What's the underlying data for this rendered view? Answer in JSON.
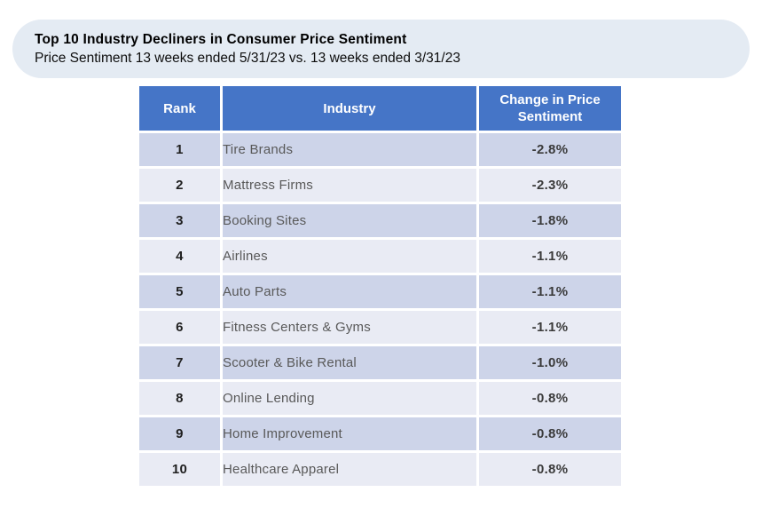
{
  "banner": {
    "title": "Top 10 Industry Decliners in Consumer Price Sentiment",
    "subtitle": "Price Sentiment 13 weeks ended 5/31/23 vs. 13 weeks ended 3/31/23"
  },
  "table": {
    "columns": [
      "Rank",
      "Industry",
      "Change in Price Sentiment"
    ],
    "rows": [
      {
        "rank": "1",
        "industry": "Tire Brands",
        "change": "-2.8%"
      },
      {
        "rank": "2",
        "industry": "Mattress Firms",
        "change": "-2.3%"
      },
      {
        "rank": "3",
        "industry": "Booking Sites",
        "change": "-1.8%"
      },
      {
        "rank": "4",
        "industry": "Airlines",
        "change": "-1.1%"
      },
      {
        "rank": "5",
        "industry": "Auto Parts",
        "change": "-1.1%"
      },
      {
        "rank": "6",
        "industry": "Fitness Centers & Gyms",
        "change": "-1.1%"
      },
      {
        "rank": "7",
        "industry": "Scooter & Bike Rental",
        "change": "-1.0%"
      },
      {
        "rank": "8",
        "industry": "Online Lending",
        "change": "-0.8%"
      },
      {
        "rank": "9",
        "industry": "Home Improvement",
        "change": "-0.8%"
      },
      {
        "rank": "10",
        "industry": "Healthcare Apparel",
        "change": "-0.8%"
      }
    ]
  },
  "colors": {
    "header_bg": "#4575C7",
    "header_text": "#FFFFFF",
    "row_odd_bg": "#CDD4E9",
    "row_even_bg": "#E9EBF4",
    "banner_bg": "#E4EBF3",
    "industry_text": "#595959",
    "value_text": "#3A3A3A"
  },
  "chart_data": {
    "type": "table",
    "title": "Top 10 Industry Decliners in Consumer Price Sentiment",
    "subtitle": "Price Sentiment 13 weeks ended 5/31/23 vs. 13 weeks ended 3/31/23",
    "columns": [
      "Rank",
      "Industry",
      "Change in Price Sentiment"
    ],
    "categories": [
      "Tire Brands",
      "Mattress Firms",
      "Booking Sites",
      "Airlines",
      "Auto Parts",
      "Fitness Centers & Gyms",
      "Scooter & Bike Rental",
      "Online Lending",
      "Home Improvement",
      "Healthcare Apparel"
    ],
    "ranks": [
      1,
      2,
      3,
      4,
      5,
      6,
      7,
      8,
      9,
      10
    ],
    "values_pct": [
      -2.8,
      -2.3,
      -1.8,
      -1.1,
      -1.1,
      -1.1,
      -1.0,
      -0.8,
      -0.8,
      -0.8
    ]
  }
}
